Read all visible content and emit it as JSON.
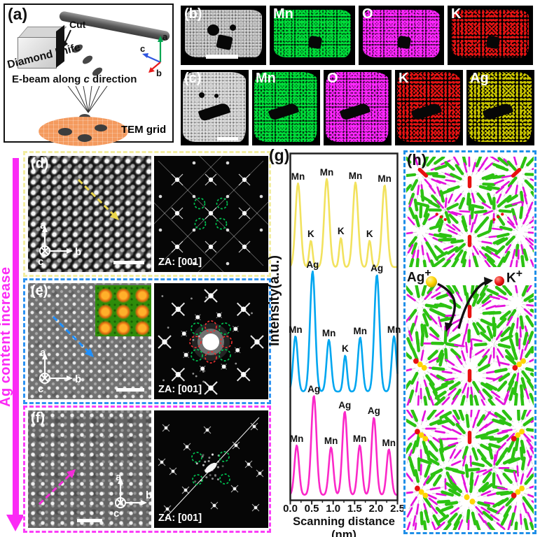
{
  "colors": {
    "figure_bg": "#ffffff",
    "fft_circle_green": "#00c050",
    "fft_circle_red": "#e83030",
    "scale_bar": "#ffffff"
  },
  "panel_a": {
    "label": "(a)",
    "cut_label": "Cut",
    "knife_label": "Diamond knife",
    "ebeam_prefix": "E-beam along ",
    "ebeam_axis": "c",
    "ebeam_suffix": " direction",
    "tem_grid_label": "TEM grid",
    "axis_a": "a",
    "axis_b": "b",
    "axis_c": "c",
    "colors": {
      "axis_a": "#00a651",
      "axis_b": "#e81c1c",
      "axis_c": "#3056e0",
      "grid_fill": "#f49a5e",
      "grid_text": "#f07d28"
    }
  },
  "row_b": {
    "label": "(b)",
    "maps": [
      {
        "element": "Mn",
        "color": "#00dd3a"
      },
      {
        "element": "O",
        "color": "#ff26ff"
      },
      {
        "element": "K",
        "color": "#f31515"
      }
    ]
  },
  "row_c": {
    "label": "(c)",
    "maps": [
      {
        "element": "Mn",
        "color": "#00dd3a"
      },
      {
        "element": "O",
        "color": "#ff26ff"
      },
      {
        "element": "K",
        "color": "#f31515"
      },
      {
        "element": "Ag",
        "color": "#d6d100"
      }
    ]
  },
  "side_arrow": {
    "label": "Ag content increase",
    "color": "#fb2af5"
  },
  "panel_d": {
    "label": "(d)",
    "za_label": "ZA: [001]",
    "axis_a": "a",
    "axis_b": "b",
    "axis_c": "c",
    "border_color": "#f2eda0",
    "arrow_color": "#e9d44a"
  },
  "panel_e": {
    "label": "(e)",
    "za_label": "ZA: [001]",
    "axis_a": "a",
    "axis_b": "b",
    "axis_c": "c",
    "border_color": "#2e93f2",
    "arrow_color": "#1e90ff"
  },
  "panel_f": {
    "label": "(f)",
    "za_label": "ZA: [001]",
    "axis_a": "a",
    "axis_b": "b",
    "axis_c": "c",
    "border_color": "#fb3df8",
    "arrow_color": "#f32cd8"
  },
  "chart_data": {
    "type": "line",
    "panel_label": "(g)",
    "xlabel": "Scanning distance (nm)",
    "ylabel": "Intensity(a.u.)",
    "xlim": [
      0.0,
      2.5
    ],
    "xticks": [
      "0.0",
      "0.5",
      "1.0",
      "1.5",
      "2.0",
      "2.5"
    ],
    "grid": false,
    "series": [
      {
        "name": "yellow-profile",
        "color": "#f2e25e",
        "baseline": 164,
        "amplitude": 126,
        "peaks": [
          {
            "x": -0.28,
            "h": 0.85,
            "w": 0.09,
            "label": ""
          },
          {
            "x": 0.18,
            "h": 0.95,
            "w": 0.085,
            "label": "Mn"
          },
          {
            "x": 0.48,
            "h": 0.3,
            "w": 0.055,
            "label": "K"
          },
          {
            "x": 0.85,
            "h": 1.0,
            "w": 0.085,
            "label": "Mn"
          },
          {
            "x": 1.18,
            "h": 0.33,
            "w": 0.055,
            "label": "K"
          },
          {
            "x": 1.52,
            "h": 0.96,
            "w": 0.085,
            "label": "Mn"
          },
          {
            "x": 1.85,
            "h": 0.3,
            "w": 0.055,
            "label": "K"
          },
          {
            "x": 2.2,
            "h": 0.93,
            "w": 0.085,
            "label": "Mn"
          },
          {
            "x": 2.7,
            "h": 0.9,
            "w": 0.09,
            "label": ""
          }
        ]
      },
      {
        "name": "blue-profile",
        "color": "#00a6f0",
        "baseline": 342,
        "amplitude": 172,
        "peaks": [
          {
            "x": -0.3,
            "h": 0.5,
            "w": 0.09,
            "label": ""
          },
          {
            "x": 0.12,
            "h": 0.46,
            "w": 0.075,
            "label": "Mn"
          },
          {
            "x": 0.52,
            "h": 1.0,
            "w": 0.085,
            "label": "Ag"
          },
          {
            "x": 0.9,
            "h": 0.43,
            "w": 0.075,
            "label": "Mn"
          },
          {
            "x": 1.28,
            "h": 0.3,
            "w": 0.06,
            "label": "K"
          },
          {
            "x": 1.63,
            "h": 0.45,
            "w": 0.075,
            "label": "Mn"
          },
          {
            "x": 2.02,
            "h": 0.97,
            "w": 0.085,
            "label": "Ag"
          },
          {
            "x": 2.42,
            "h": 0.46,
            "w": 0.075,
            "label": "Mn"
          },
          {
            "x": 2.78,
            "h": 0.5,
            "w": 0.09,
            "label": ""
          }
        ]
      },
      {
        "name": "magenta-profile",
        "color": "#fb28c8",
        "baseline": 490,
        "amplitude": 142,
        "peaks": [
          {
            "x": -0.3,
            "h": 0.5,
            "w": 0.09,
            "label": ""
          },
          {
            "x": 0.15,
            "h": 0.5,
            "w": 0.075,
            "label": "Mn"
          },
          {
            "x": 0.55,
            "h": 1.0,
            "w": 0.085,
            "label": "Ag"
          },
          {
            "x": 0.95,
            "h": 0.48,
            "w": 0.075,
            "label": "Mn"
          },
          {
            "x": 1.27,
            "h": 0.84,
            "w": 0.08,
            "label": "Ag"
          },
          {
            "x": 1.62,
            "h": 0.5,
            "w": 0.075,
            "label": "Mn"
          },
          {
            "x": 1.95,
            "h": 0.78,
            "w": 0.08,
            "label": "Ag"
          },
          {
            "x": 2.3,
            "h": 0.46,
            "w": 0.075,
            "label": "Mn"
          },
          {
            "x": 2.75,
            "h": 0.5,
            "w": 0.09,
            "label": ""
          }
        ]
      }
    ]
  },
  "panel_h": {
    "label": "(h)",
    "ag_ion": "Ag",
    "ag_sup": "+",
    "k_ion": "K",
    "k_sup": "+",
    "border_color": "#1f8fe8",
    "rod_green": "#2cc212",
    "rod_magenta": "#e412dd",
    "ion_yellow": "#ffd400",
    "ion_red": "#e81010",
    "structures": [
      {
        "guests": "red K ions in tunnels"
      },
      {
        "guests": "mixed yellow Ag and red K ions"
      },
      {
        "guests": "yellow Ag-rich tunnels"
      }
    ]
  }
}
